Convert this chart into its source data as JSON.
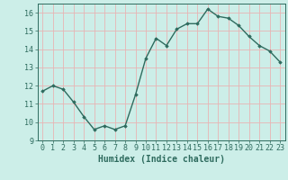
{
  "x": [
    0,
    1,
    2,
    3,
    4,
    5,
    6,
    7,
    8,
    9,
    10,
    11,
    12,
    13,
    14,
    15,
    16,
    17,
    18,
    19,
    20,
    21,
    22,
    23
  ],
  "y": [
    11.7,
    12.0,
    11.8,
    11.1,
    10.3,
    9.6,
    9.8,
    9.6,
    9.8,
    11.5,
    13.5,
    14.6,
    14.2,
    15.1,
    15.4,
    15.4,
    16.2,
    15.8,
    15.7,
    15.3,
    14.7,
    14.2,
    13.9,
    13.3
  ],
  "line_color": "#2e6b5e",
  "bg_color": "#cceee8",
  "grid_color": "#e8b4b4",
  "xlabel": "Humidex (Indice chaleur)",
  "ylim": [
    9,
    16.5
  ],
  "xlim": [
    -0.5,
    23.5
  ],
  "yticks": [
    9,
    10,
    11,
    12,
    13,
    14,
    15,
    16
  ],
  "xticks": [
    0,
    1,
    2,
    3,
    4,
    5,
    6,
    7,
    8,
    9,
    10,
    11,
    12,
    13,
    14,
    15,
    16,
    17,
    18,
    19,
    20,
    21,
    22,
    23
  ],
  "marker": "D",
  "markersize": 1.8,
  "linewidth": 1.0,
  "xlabel_fontsize": 7,
  "tick_fontsize": 6
}
